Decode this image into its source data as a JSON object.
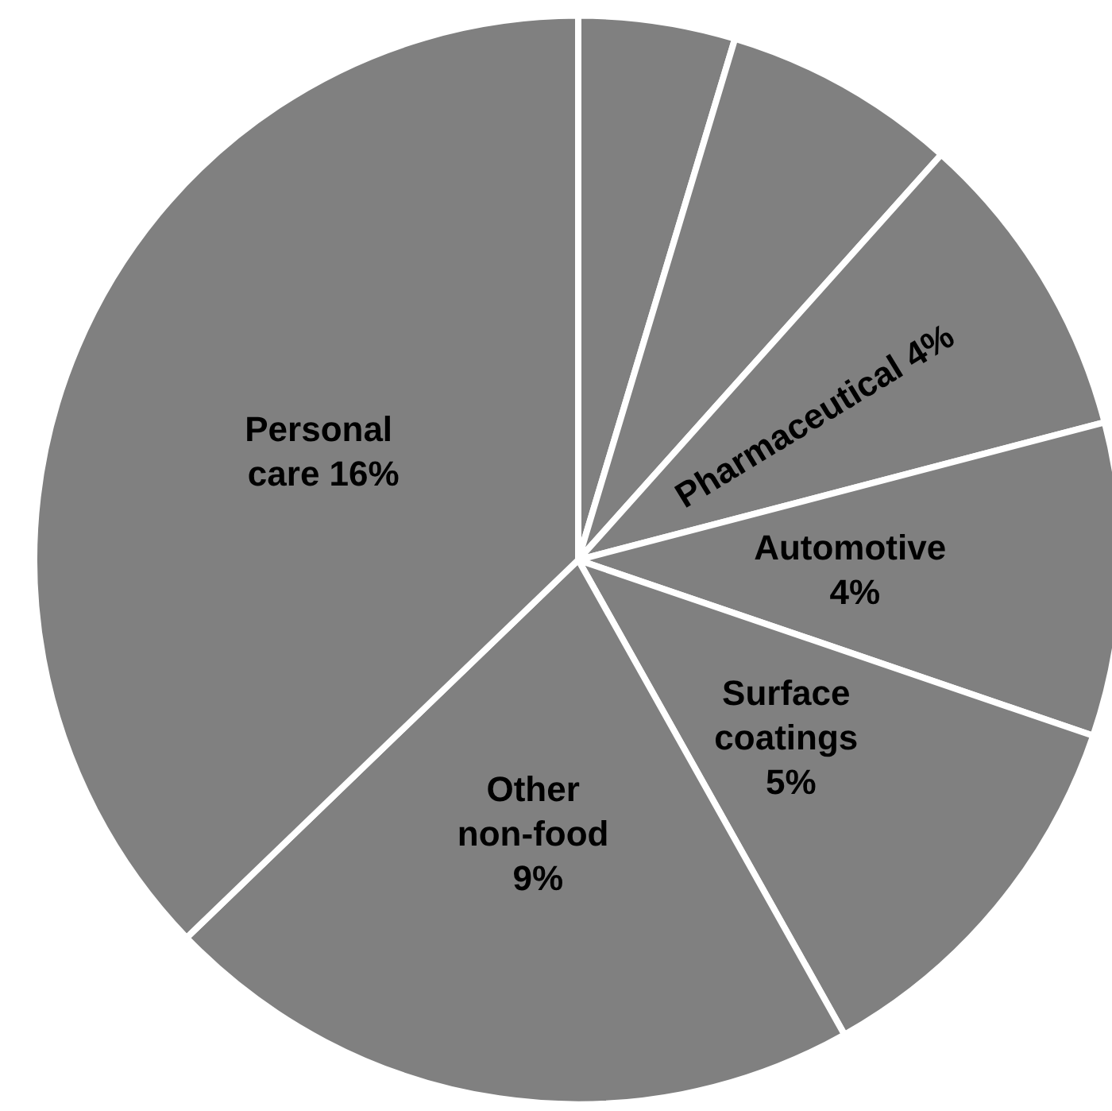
{
  "chart_data": {
    "type": "pie",
    "categories": [
      null,
      null,
      "Pharmaceutical 4%",
      "Automotive 4%",
      "Surface coatings 5%",
      "Other non-food 9%",
      "Personal care 16%"
    ],
    "values": [
      2,
      3,
      4,
      4,
      5,
      9,
      16
    ],
    "colors": [
      "#808080",
      "#808080",
      "#808080",
      "#808080",
      "#808080",
      "#808080",
      "#808080"
    ],
    "legend": false
  }
}
